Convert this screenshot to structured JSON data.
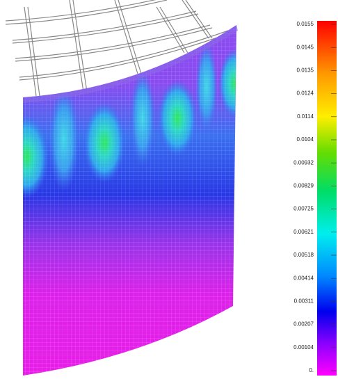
{
  "legend": {
    "labels": [
      "0.0155",
      "0.0145",
      "0.0135",
      "0.0124",
      "0.0114",
      "0.0104",
      "0.00932",
      "0.00829",
      "0.00725",
      "0.00621",
      "0.00518",
      "0.00414",
      "0.00311",
      "0.00207",
      "0.00104",
      "0."
    ]
  }
}
